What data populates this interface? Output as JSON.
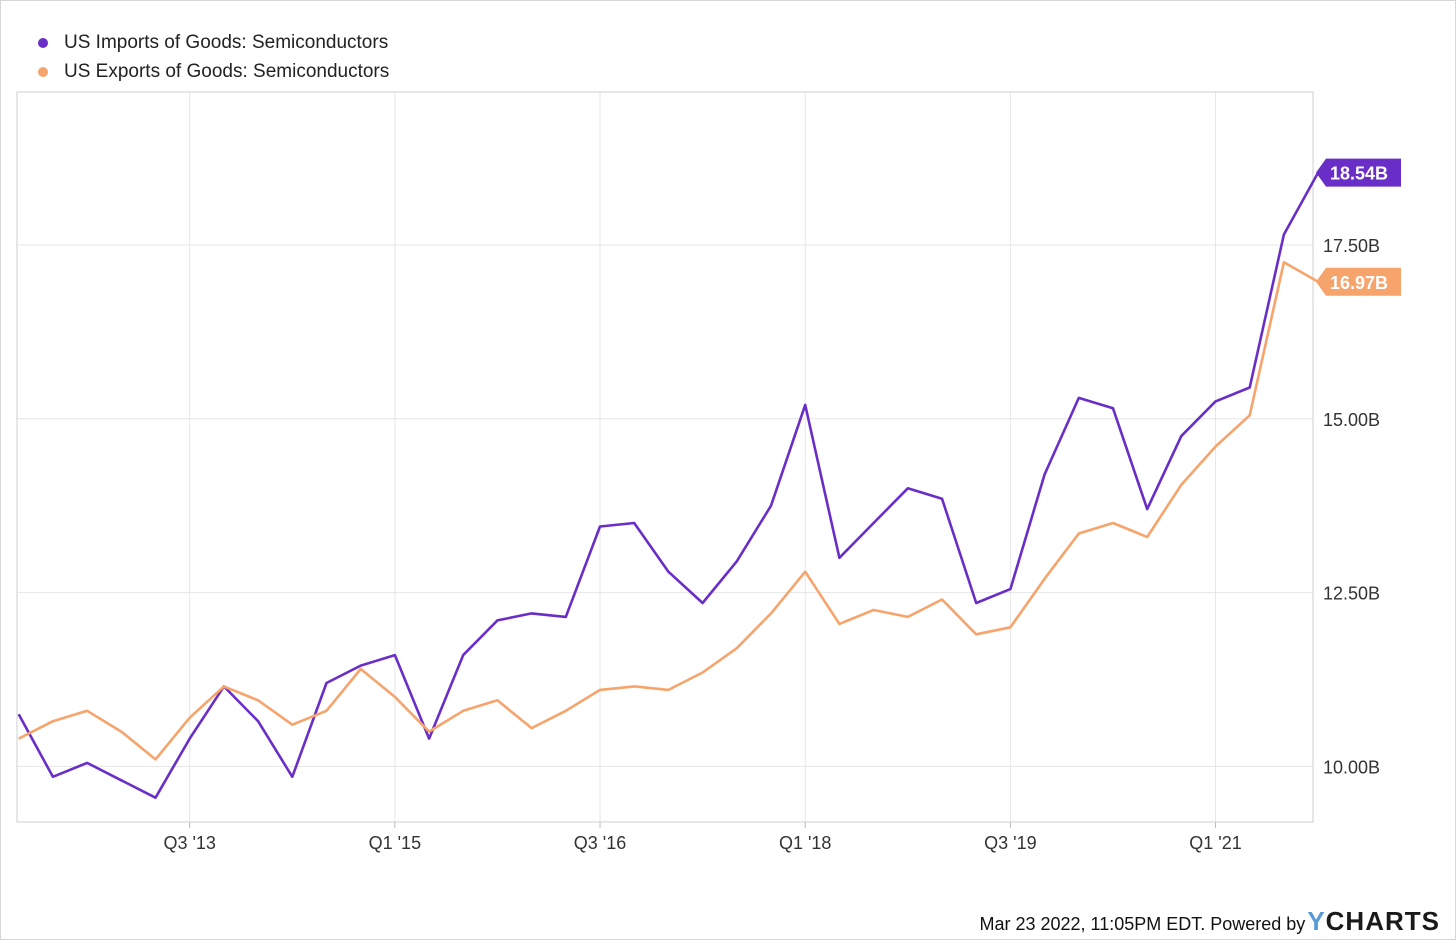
{
  "chart_data": {
    "type": "line",
    "x_ticks": [
      "Q3 '13",
      "Q1 '15",
      "Q3 '16",
      "Q1 '18",
      "Q3 '19",
      "Q1 '21"
    ],
    "x_tick_index": [
      5,
      11,
      17,
      23,
      29,
      35
    ],
    "y_ticks": [
      "10.00B",
      "12.50B",
      "15.00B",
      "17.50B"
    ],
    "y_tick_values": [
      10,
      12.5,
      15,
      17.5
    ],
    "ylim": [
      9.2,
      19.7
    ],
    "x_range": [
      -0.05,
      37.85
    ],
    "grid": true,
    "legend_position": "top-left",
    "series": [
      {
        "name": "US Imports of Goods: Semiconductors",
        "color": "#6a2ec8",
        "end_label": "18.54B",
        "values": [
          10.75,
          9.85,
          10.05,
          9.8,
          9.55,
          10.4,
          11.15,
          10.65,
          9.85,
          11.2,
          11.45,
          11.6,
          10.4,
          11.6,
          12.1,
          12.2,
          12.15,
          13.45,
          13.5,
          12.8,
          12.35,
          12.95,
          13.75,
          15.2,
          13.0,
          13.5,
          14.0,
          13.85,
          12.35,
          12.55,
          14.2,
          15.3,
          15.15,
          13.7,
          14.75,
          15.25,
          15.45,
          17.65,
          18.54
        ]
      },
      {
        "name": "US Exports of Goods: Semiconductors",
        "color": "#f6a46c",
        "end_label": "16.97B",
        "values": [
          10.4,
          10.65,
          10.8,
          10.5,
          10.1,
          10.7,
          11.15,
          10.95,
          10.6,
          10.8,
          11.4,
          11.0,
          10.5,
          10.8,
          10.95,
          10.55,
          10.8,
          11.1,
          11.15,
          11.1,
          11.35,
          11.7,
          12.2,
          12.8,
          12.05,
          12.25,
          12.15,
          12.4,
          11.9,
          12.0,
          12.7,
          13.35,
          13.5,
          13.3,
          14.05,
          14.6,
          15.05,
          17.25,
          16.97
        ]
      }
    ]
  },
  "footer": {
    "timestamp": "Mar 23 2022, 11:05PM EDT. Powered by",
    "logo_y": "Y",
    "logo_rest": "CHARTS"
  }
}
